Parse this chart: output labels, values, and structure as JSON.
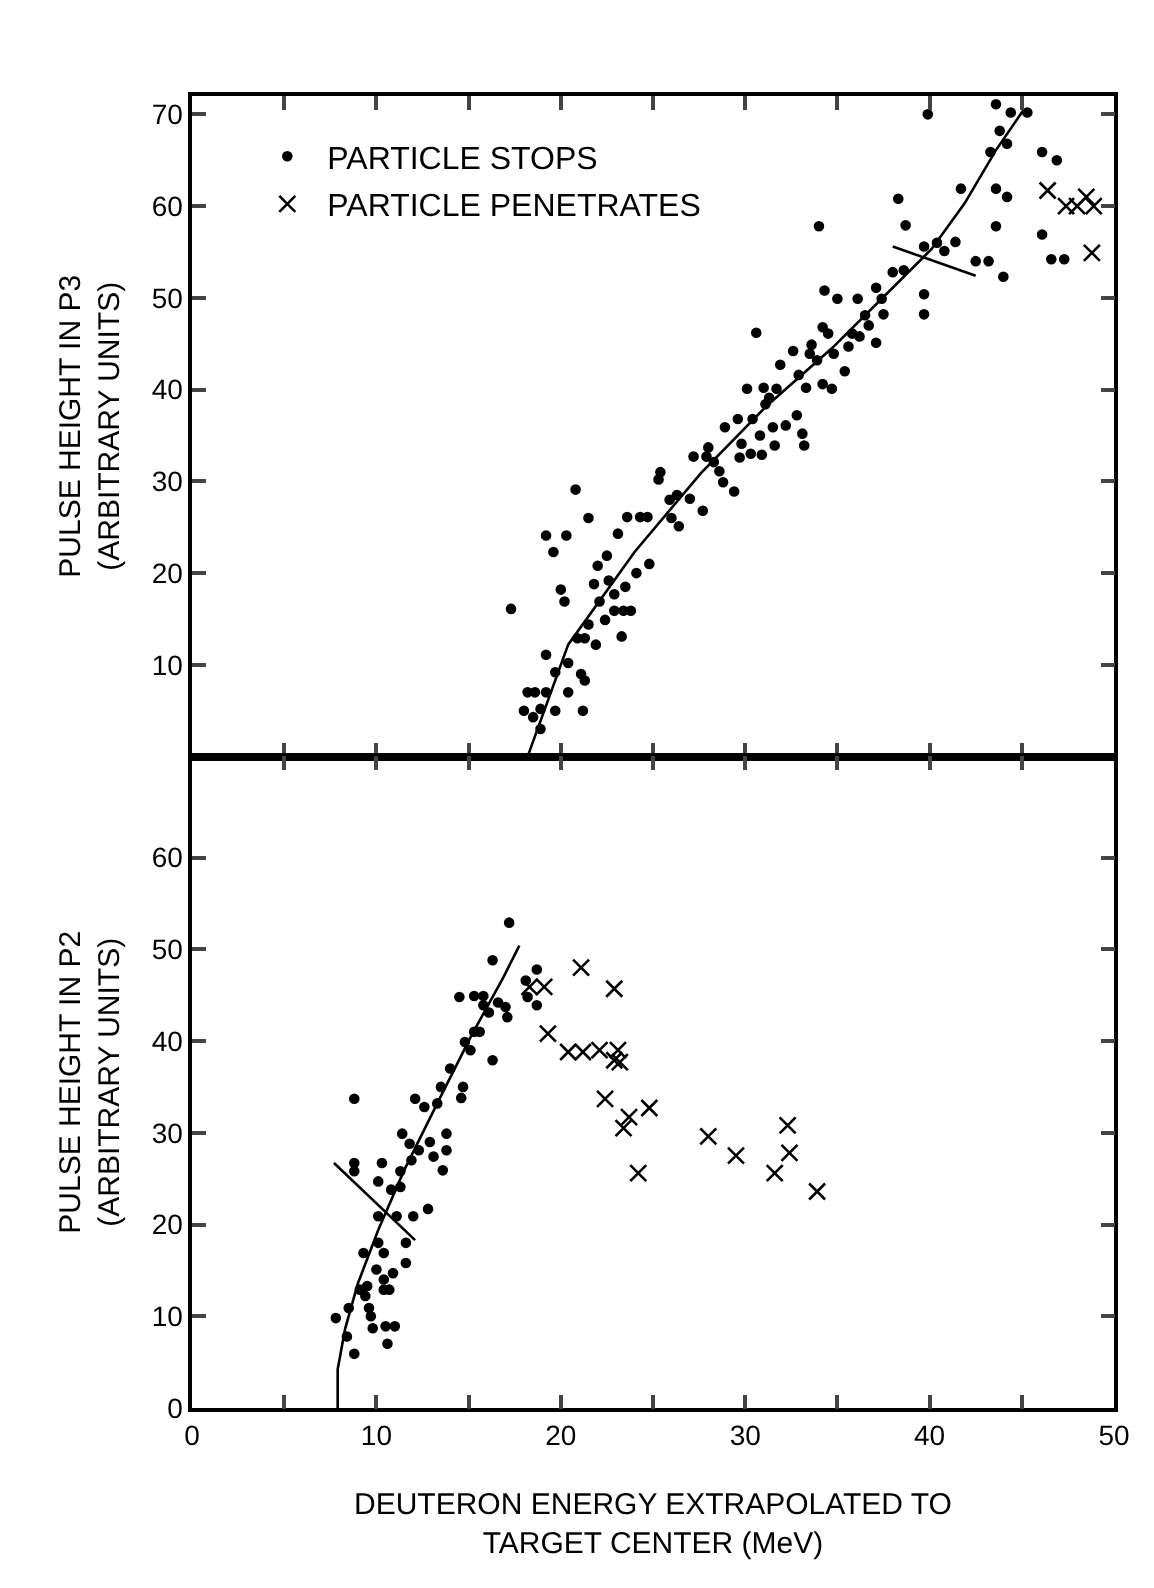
{
  "chart_data": [
    {
      "type": "scatter",
      "ylabel": "PULSE HEIGHT IN P3\n(ARBITRARY UNITS)",
      "xlim": [
        0,
        50
      ],
      "ylim": [
        0,
        72
      ],
      "xticks": [
        0,
        {
          "value": 5,
          "label": null
        },
        10,
        {
          "value": 15,
          "label": null
        },
        20,
        {
          "value": 25,
          "label": null
        },
        30,
        {
          "value": 35,
          "label": null
        },
        40,
        {
          "value": 45,
          "label": null
        },
        50
      ],
      "yticks": [
        10,
        20,
        30,
        40,
        50,
        60,
        70
      ],
      "tick_labels": "y",
      "grid": false,
      "legend": "top left",
      "series": [
        {
          "name": "PARTICLE STOPS",
          "color": "#000000",
          "marker": "circle",
          "x": [
            17.3,
            18.0,
            18.2,
            18.6,
            18.5,
            18.9,
            18.9,
            19.2,
            19.2,
            19.2,
            19.7,
            19.6,
            19.7,
            20.0,
            20.2,
            20.3,
            20.4,
            20.4,
            20.8,
            20.9,
            21.1,
            21.2,
            21.3,
            21.3,
            21.5,
            21.5,
            21.8,
            21.9,
            22.0,
            22.1,
            22.4,
            22.5,
            22.6,
            22.9,
            22.9,
            23.1,
            23.3,
            23.4,
            23.5,
            23.6,
            23.8,
            24.1,
            24.3,
            24.7,
            24.8,
            25.3,
            25.4,
            25.9,
            26.0,
            26.3,
            26.4,
            27.0,
            27.2,
            27.7,
            27.9,
            28.0,
            28.3,
            28.6,
            28.8,
            28.9,
            29.4,
            29.6,
            29.7,
            29.8,
            30.1,
            30.3,
            30.4,
            30.6,
            30.8,
            30.9,
            31.0,
            31.1,
            31.3,
            31.5,
            31.6,
            31.7,
            31.9,
            32.2,
            32.6,
            32.8,
            32.9,
            33.1,
            33.2,
            33.3,
            33.5,
            33.6,
            33.9,
            34.2,
            34.2,
            34.3,
            34.5,
            34.7,
            34.8,
            35.0,
            35.4,
            35.6,
            35.8,
            36.1,
            36.2,
            36.5,
            36.7,
            37.1,
            37.1,
            37.4,
            37.5,
            38.0,
            38.3,
            38.6,
            38.7,
            39.7,
            39.7,
            39.7,
            39.9,
            40.4,
            40.8,
            41.4,
            41.7,
            42.5,
            43.2,
            43.3,
            43.6,
            43.6,
            43.6,
            43.8,
            44.0,
            44.2,
            44.2,
            44.4,
            45.3,
            46.1,
            46.1,
            46.6,
            46.9,
            47.3,
            34.0
          ],
          "values": [
            16.1,
            5.0,
            7.0,
            7.0,
            4.3,
            3.0,
            5.2,
            7.0,
            11.1,
            24.1,
            5.0,
            22.3,
            9.2,
            18.2,
            16.9,
            24.1,
            7.0,
            10.2,
            29.1,
            12.9,
            9.0,
            5.0,
            8.3,
            12.9,
            14.4,
            26.0,
            18.8,
            12.2,
            20.8,
            16.9,
            14.9,
            21.9,
            19.2,
            17.7,
            15.9,
            24.3,
            13.1,
            15.9,
            18.5,
            26.1,
            15.9,
            20.0,
            26.1,
            26.1,
            21.0,
            30.2,
            31.0,
            28.0,
            26.0,
            28.5,
            25.1,
            28.1,
            32.7,
            26.8,
            32.7,
            33.7,
            32.1,
            31.1,
            29.9,
            35.9,
            28.9,
            36.8,
            32.6,
            34.1,
            40.1,
            33.0,
            36.8,
            46.2,
            35.0,
            32.9,
            40.2,
            38.4,
            39.1,
            35.9,
            33.9,
            40.1,
            42.7,
            36.1,
            44.2,
            37.2,
            41.6,
            35.2,
            33.9,
            40.2,
            43.9,
            44.9,
            43.2,
            40.6,
            46.8,
            50.8,
            46.1,
            40.1,
            43.9,
            49.9,
            42.0,
            44.7,
            46.1,
            49.9,
            45.8,
            48.1,
            47.0,
            45.1,
            51.1,
            49.9,
            48.2,
            52.8,
            60.8,
            53.0,
            57.9,
            50.4,
            48.2,
            55.6,
            70.0,
            56.0,
            55.1,
            56.1,
            61.9,
            54.0,
            54.0,
            65.9,
            61.9,
            57.8,
            71.1,
            68.2,
            52.3,
            66.8,
            61.0,
            70.2,
            70.2,
            65.9,
            56.9,
            54.2,
            65.0,
            54.2,
            57.8
          ]
        },
        {
          "name": "PARTICLE PENETRATES",
          "color": "#000000",
          "marker": "cross",
          "x": [
            46.4,
            47.4,
            48.0,
            48.5,
            48.9,
            48.8
          ],
          "values": [
            61.7,
            60.0,
            60.0,
            61.0,
            60.0,
            54.9
          ]
        },
        {
          "type": "line",
          "color": "#000000",
          "marker": "none",
          "x": [
            18.2,
            20.4,
            24.0,
            27.6,
            31.1,
            34.7,
            38.3,
            40.1,
            41.9,
            43.6,
            45.1
          ],
          "values": [
            0,
            12.2,
            22.3,
            30.9,
            38.1,
            44.5,
            51.7,
            55.3,
            60.3,
            66.1,
            70.5
          ]
        },
        {
          "type": "line",
          "color": "#000000",
          "marker": "none",
          "x": [
            38.0,
            42.5
          ],
          "values": [
            55.6,
            52.4
          ]
        }
      ]
    },
    {
      "type": "scatter",
      "ylabel": "PULSE HEIGHT IN P2\n(ARBITRARY UNITS)",
      "xlabel": "DEUTERON ENERGY EXTRAPOLATED TO\nTARGET CENTER (MeV)",
      "xlim": [
        0,
        50
      ],
      "ylim": [
        0,
        71
      ],
      "xticks": [
        0,
        {
          "value": 5,
          "label": null
        },
        10,
        {
          "value": 15,
          "label": null
        },
        20,
        {
          "value": 25,
          "label": null
        },
        30,
        {
          "value": 35,
          "label": null
        },
        40,
        {
          "value": 45,
          "label": null
        },
        50
      ],
      "yticks": [
        0,
        10,
        20,
        30,
        40,
        50,
        60
      ],
      "grid": false,
      "legend": false,
      "series": [
        {
          "color": "#000000",
          "marker": "circle",
          "x": [
            7.8,
            8.4,
            8.5,
            8.8,
            8.8,
            8.8,
            8.8,
            9.1,
            9.3,
            9.4,
            9.5,
            9.6,
            9.7,
            9.8,
            10.0,
            10.1,
            10.1,
            10.1,
            10.3,
            10.4,
            10.4,
            10.4,
            10.5,
            10.6,
            10.7,
            10.8,
            10.9,
            11.0,
            11.1,
            11.3,
            11.3,
            11.4,
            11.6,
            11.6,
            11.8,
            11.9,
            12.0,
            12.1,
            12.3,
            12.6,
            12.8,
            12.9,
            13.1,
            13.3,
            13.5,
            13.6,
            13.8,
            13.8,
            14.0,
            14.5,
            14.6,
            14.7,
            14.8,
            15.1,
            15.3,
            15.3,
            15.6,
            15.8,
            15.8,
            16.1,
            16.3,
            16.3,
            16.6,
            17.0,
            17.1,
            17.2,
            18.1,
            18.2,
            18.7,
            18.7
          ],
          "values": [
            9.8,
            7.8,
            10.9,
            5.9,
            33.7,
            26.7,
            25.8,
            12.9,
            16.9,
            12.2,
            13.3,
            10.9,
            10.0,
            8.7,
            15.1,
            18.0,
            20.9,
            24.7,
            26.7,
            14.0,
            12.9,
            16.9,
            8.9,
            7.0,
            12.9,
            23.8,
            14.7,
            8.9,
            20.9,
            24.1,
            25.8,
            29.9,
            15.8,
            18.0,
            28.8,
            27.0,
            20.9,
            33.7,
            28.1,
            32.8,
            21.7,
            29.0,
            27.4,
            33.2,
            35.0,
            25.9,
            29.9,
            28.1,
            37.0,
            44.8,
            33.8,
            35.0,
            39.9,
            39.0,
            44.9,
            41.0,
            41.0,
            44.9,
            43.9,
            43.1,
            48.8,
            37.9,
            44.2,
            43.7,
            42.6,
            52.9,
            46.6,
            44.8,
            47.8,
            43.9
          ]
        },
        {
          "color": "#000000",
          "marker": "cross",
          "x": [
            18.3,
            19.1,
            19.3,
            20.4,
            21.1,
            21.2,
            22.1,
            22.4,
            22.9,
            22.9,
            23.1,
            23.2,
            23.4,
            23.7,
            24.2,
            24.8,
            28.0,
            29.5,
            31.6,
            32.3,
            32.4,
            33.9
          ],
          "values": [
            45.9,
            45.9,
            40.8,
            38.8,
            48.0,
            38.8,
            39.0,
            33.7,
            45.7,
            37.9,
            39.0,
            37.7,
            30.5,
            31.7,
            25.6,
            32.7,
            29.6,
            27.5,
            25.6,
            30.8,
            27.8,
            23.6
          ]
        },
        {
          "type": "line",
          "color": "#000000",
          "marker": "none",
          "x": [
            7.9,
            7.9,
            8.3,
            9.0,
            10.1,
            11.5,
            13.3,
            15.1,
            16.9,
            17.75
          ],
          "values": [
            0,
            4.2,
            8.6,
            13.6,
            19.4,
            25.9,
            33.2,
            40.4,
            47.0,
            50.4
          ]
        },
        {
          "type": "line",
          "color": "#000000",
          "marker": "none",
          "x": [
            7.7,
            12.1
          ],
          "values": [
            26.7,
            18.3
          ]
        }
      ]
    }
  ]
}
